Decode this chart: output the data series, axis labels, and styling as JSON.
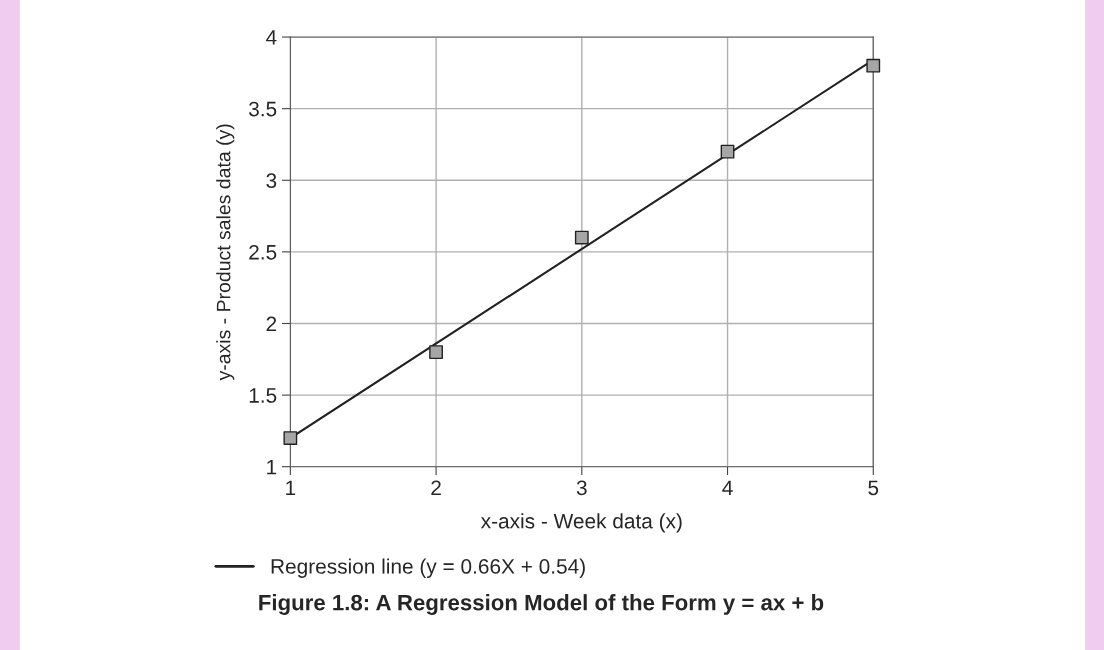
{
  "chart_data": {
    "type": "scatter",
    "xlabel": "x-axis - Week data (x)",
    "ylabel": "y-axis - Product sales data (y)",
    "series": [
      {
        "color": "#a6a6a6",
        "marker": "square",
        "x": [
          1,
          2,
          3,
          4,
          5
        ],
        "values": [
          1.2,
          1.8,
          2.6,
          3.2,
          3.8
        ]
      },
      {
        "type": "line",
        "name": "Regression line (y = 0.66X + 0.54)",
        "color": "#222222",
        "marker": "none",
        "line_style": "solid",
        "x": [
          1,
          5
        ],
        "values": [
          1.2,
          3.84
        ]
      }
    ],
    "xlim": [
      1,
      5
    ],
    "xticks": [
      1,
      2,
      3,
      4,
      5
    ],
    "ylim": [
      1,
      4
    ],
    "yticks": [
      1,
      1.5,
      2,
      2.5,
      3,
      3.5,
      4
    ],
    "grid": true,
    "legend": "bottom left",
    "annotations": [
      "Figure 1.8: A Regression Model of the Form y = ax + b"
    ]
  }
}
